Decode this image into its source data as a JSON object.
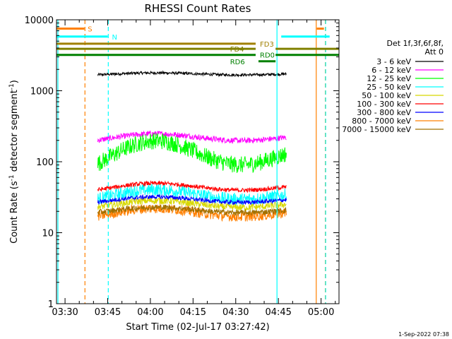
{
  "chart_data": {
    "type": "line",
    "title": "RHESSI Count Rates",
    "xlabel": "Start Time (02-Jul-17 03:27:42)",
    "ylabel_main": "Count Rate (s",
    "ylabel_sup": "-1",
    "ylabel_tail": " detector segment",
    "ylabel_sup2": "-1",
    "ylabel_end": ")",
    "y_scale": "log",
    "ylim": [
      1,
      10000
    ],
    "xlim_minutes": [
      207.0,
      306.3
    ],
    "x_ticks": [
      {
        "label": "03:30",
        "min": 210
      },
      {
        "label": "03:45",
        "min": 225
      },
      {
        "label": "04:00",
        "min": 240
      },
      {
        "label": "04:15",
        "min": 255
      },
      {
        "label": "04:30",
        "min": 270
      },
      {
        "label": "04:45",
        "min": 285
      },
      {
        "label": "05:00",
        "min": 300
      }
    ],
    "y_ticks": [
      {
        "label": "1",
        "value": 1
      },
      {
        "label": "10",
        "value": 10
      },
      {
        "label": "100",
        "value": 100
      },
      {
        "label": "1000",
        "value": 1000
      },
      {
        "label": "10000",
        "value": 10000
      }
    ],
    "data_range_minutes": [
      221.5,
      287.8
    ],
    "legend_title": [
      "Det 1f,3f,6f,8f,",
      "Att 0"
    ],
    "legend_position": "right",
    "series": [
      {
        "name": "3 - 6 keV",
        "color": "#000000",
        "base": 1700,
        "amp": 0.03,
        "noise": 0.02
      },
      {
        "name": "6 - 12 keV",
        "color": "#ff00ff",
        "base": 210,
        "amp": 0.1,
        "noise": 0.04
      },
      {
        "name": "12 - 25 keV",
        "color": "#00ff00",
        "base": 110,
        "amp": 0.35,
        "noise": 0.12
      },
      {
        "name": "25 - 50 keV",
        "color": "#00ffff",
        "base": 32,
        "amp": 0.14,
        "noise": 0.09
      },
      {
        "name": "50 - 100 keV",
        "color": "#d8d800",
        "base": 24,
        "amp": 0.1,
        "noise": 0.05
      },
      {
        "name": "100 - 300 keV",
        "color": "#ff0000",
        "base": 42,
        "amp": 0.1,
        "noise": 0.03
      },
      {
        "name": "300 - 800 keV",
        "color": "#0000ff",
        "base": 28,
        "amp": 0.08,
        "noise": 0.03
      },
      {
        "name": "800 - 7000 keV",
        "color": "#ff8000",
        "base": 18,
        "amp": 0.12,
        "noise": 0.07
      },
      {
        "name": "7000 - 15000 keV",
        "color": "#a07000",
        "base": 20,
        "amp": 0.08,
        "noise": 0.04
      }
    ],
    "flag_bars": [
      {
        "label": "S",
        "color": "#ff8000",
        "start": 207.0,
        "end": 216.8,
        "level": 7500,
        "label_min": 218.0
      },
      {
        "label": "N",
        "color": "#00ffff",
        "start": 207.0,
        "end": 225.0,
        "level": 5800,
        "label_min": 226.5
      },
      {
        "label": "",
        "color": "#00ffff",
        "start": 286.0,
        "end": 303.0,
        "level": 5800,
        "label_min": 0
      },
      {
        "label": "",
        "color": "#ff8000",
        "start": 298.5,
        "end": 301.0,
        "level": 7500,
        "label_min": 0
      },
      {
        "label": "FD3",
        "color": "#a08000",
        "start": 207.0,
        "end": 277.0,
        "level": 4600,
        "label_min": 278.5
      },
      {
        "label": "FD4",
        "color": "#808000",
        "start": 207.0,
        "end": 277.0,
        "level": 3900,
        "label_min": 268.0
      },
      {
        "label": "",
        "color": "#808000",
        "start": 284.0,
        "end": 306.3,
        "level": 3900,
        "label_min": 0
      },
      {
        "label": "RD0",
        "color": "#008000",
        "start": 207.0,
        "end": 277.0,
        "level": 3200,
        "label_min": 278.5
      },
      {
        "label": "",
        "color": "#008000",
        "start": 284.0,
        "end": 306.3,
        "level": 3200,
        "label_min": 0
      },
      {
        "label": "RD6",
        "color": "#008000",
        "start": 278.0,
        "end": 284.0,
        "level": 2600,
        "label_min": 268.0
      }
    ],
    "vertical_lines": [
      {
        "min": 207.5,
        "color": "#00ffff",
        "dash": false
      },
      {
        "min": 217.0,
        "color": "#ff8000",
        "dash": true
      },
      {
        "min": 225.2,
        "color": "#00ffff",
        "dash": true
      },
      {
        "min": 284.5,
        "color": "#00ffff",
        "dash": false
      },
      {
        "min": 298.3,
        "color": "#ff8000",
        "dash": false
      },
      {
        "min": 301.5,
        "color": "#ff8000",
        "dash": true
      },
      {
        "min": 301.6,
        "color": "#00ffff",
        "dash": true
      }
    ]
  },
  "footer": {
    "timestamp": "1-Sep-2022 07:38"
  }
}
